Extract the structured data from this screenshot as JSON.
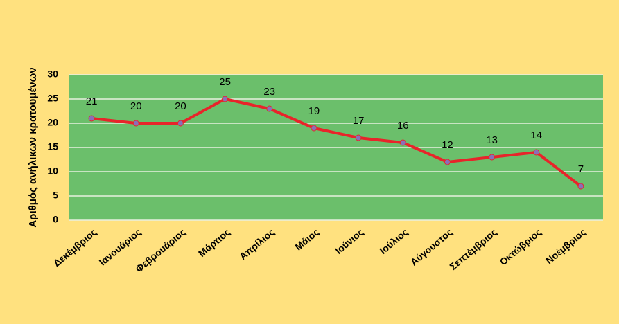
{
  "chart_data": {
    "type": "line",
    "y_label": "Αριθμός ανήλικων κρατουμένων",
    "categories": [
      "Δεκέμβριος",
      "Ιανουάριος",
      "Φεβρουάριος",
      "Μάρτιος",
      "Απρίλιος",
      "Μάιος",
      "Ιούνιος",
      "Ιούλιος",
      "Αύγουστος",
      "Σεπτέμβριος",
      "Οκτώβριος",
      "Νοέμβριος"
    ],
    "values": [
      21,
      20,
      20,
      25,
      23,
      19,
      17,
      16,
      12,
      13,
      14,
      7
    ],
    "color": "#e8242a",
    "marker_color": "#8a6fb8",
    "ylim": [
      0,
      30
    ],
    "yticks": [
      0,
      5,
      10,
      15,
      20,
      25,
      30
    ],
    "grid": true,
    "background": "#ffe17f",
    "plot_background": "#6bbf6b"
  }
}
